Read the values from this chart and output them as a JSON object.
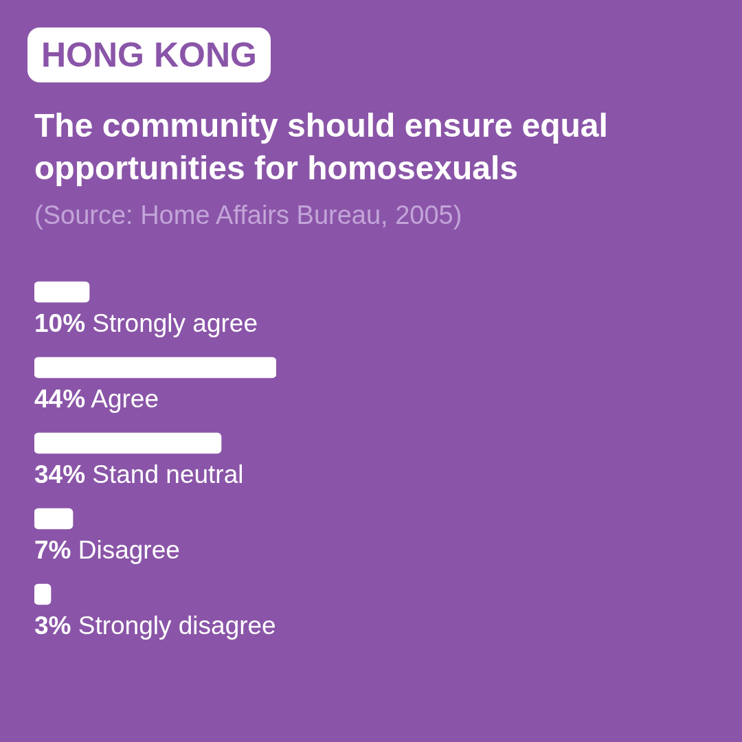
{
  "chart_data": {
    "type": "bar",
    "orientation": "horizontal",
    "subtitle": "HONG KONG",
    "title": "The community should ensure equal opportunities for homosexuals",
    "annotations": [
      "(Source: Home Affairs Bureau, 2005)"
    ],
    "categories": [
      "Strongly agree",
      "Agree",
      "Stand neutral",
      "Disagree",
      "Strongly disagree"
    ],
    "values": [
      10,
      44,
      34,
      7,
      3
    ],
    "value_labels": [
      "10%",
      "44%",
      "34%",
      "7%",
      "3%"
    ],
    "color": "#ffffff",
    "tick_labels": "y",
    "grid": false,
    "legend": false
  }
}
